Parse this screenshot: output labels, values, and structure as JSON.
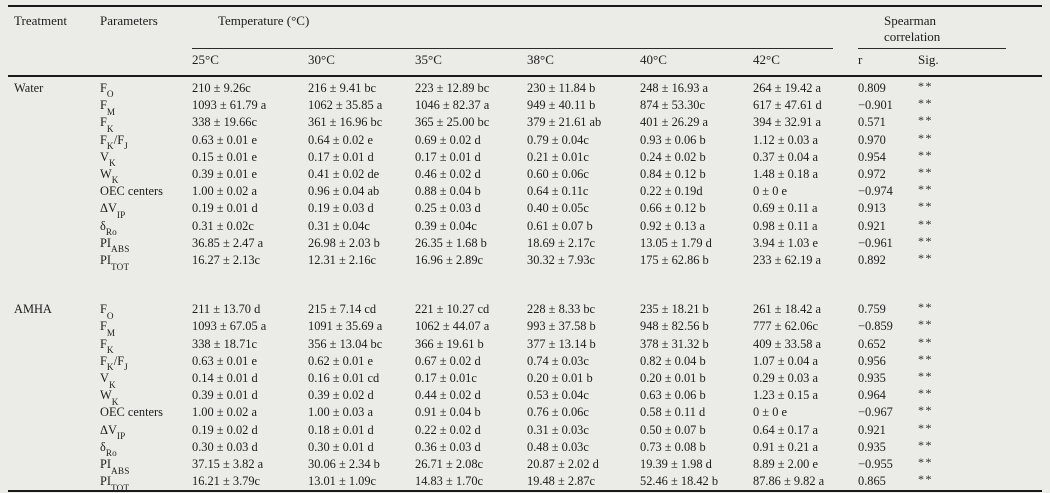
{
  "header": {
    "treatment": "Treatment",
    "parameters": "Parameters",
    "temperature_group": "Temperature (°C)",
    "spearman_group": "Spearman correlation",
    "temps": [
      "25°C",
      "30°C",
      "35°C",
      "38°C",
      "40°C",
      "42°C"
    ],
    "r_label": "r",
    "sig_label": "Sig."
  },
  "sections": [
    {
      "treatment": "Water",
      "rows": [
        {
          "param": "F_{O}",
          "values": [
            "210 ± 9.26c",
            "216 ± 9.41 bc",
            "223 ± 12.89 bc",
            "230 ± 11.84 b",
            "248 ± 16.93 a",
            "264 ± 19.42 a"
          ],
          "r": "0.809",
          "sig": "**"
        },
        {
          "param": "F_{M}",
          "values": [
            "1093 ± 61.79 a",
            "1062 ± 35.85 a",
            "1046 ± 82.37 a",
            "949 ± 40.11 b",
            "874 ± 53.30c",
            "617 ± 47.61 d"
          ],
          "r": "−0.901",
          "sig": "**"
        },
        {
          "param": "F_{K}",
          "values": [
            "338 ± 19.66c",
            "361 ± 16.96 bc",
            "365 ± 25.00 bc",
            "379 ± 21.61 ab",
            "401 ± 26.29 a",
            "394 ± 32.91 a"
          ],
          "r": "0.571",
          "sig": "**"
        },
        {
          "param": "F_{K}/F_{J}",
          "values": [
            "0.63 ± 0.01 e",
            "0.64 ± 0.02 e",
            "0.69 ± 0.02 d",
            "0.79 ± 0.04c",
            "0.93 ± 0.06 b",
            "1.12 ± 0.03 a"
          ],
          "r": "0.970",
          "sig": "**"
        },
        {
          "param": "V_{K}",
          "values": [
            "0.15 ± 0.01 e",
            "0.17 ± 0.01 d",
            "0.17 ± 0.01 d",
            "0.21 ± 0.01c",
            "0.24 ± 0.02 b",
            "0.37 ± 0.04 a"
          ],
          "r": "0.954",
          "sig": "**"
        },
        {
          "param": "W_{K}",
          "values": [
            "0.39 ± 0.01 e",
            "0.41 ± 0.02 de",
            "0.46 ± 0.02 d",
            "0.60 ± 0.06c",
            "0.84 ± 0.12 b",
            "1.48 ± 0.18 a"
          ],
          "r": "0.972",
          "sig": "**"
        },
        {
          "param": "OEC centers",
          "values": [
            "1.00 ± 0.02 a",
            "0.96 ± 0.04 ab",
            "0.88 ± 0.04 b",
            "0.64 ± 0.11c",
            "0.22 ± 0.19d",
            "0 ± 0 e"
          ],
          "r": "−0.974",
          "sig": "**"
        },
        {
          "param": "ΔV_{IP}",
          "values": [
            "0.19 ± 0.01 d",
            "0.19 ± 0.03 d",
            "0.25 ± 0.03 d",
            "0.40 ± 0.05c",
            "0.66 ± 0.12 b",
            "0.69 ± 0.11 a"
          ],
          "r": "0.913",
          "sig": "**"
        },
        {
          "param": "δ_{Ro}",
          "values": [
            "0.31 ± 0.02c",
            "0.31 ± 0.04c",
            "0.39 ± 0.04c",
            "0.61 ± 0.07 b",
            "0.92 ± 0.13 a",
            "0.98 ± 0.11 a"
          ],
          "r": "0.921",
          "sig": "**"
        },
        {
          "param": "PI_{ABS}",
          "values": [
            "36.85 ± 2.47 a",
            "26.98 ± 2.03 b",
            "26.35 ± 1.68 b",
            "18.69 ± 2.17c",
            "13.05 ± 1.79 d",
            "3.94 ± 1.03 e"
          ],
          "r": "−0.961",
          "sig": "**"
        },
        {
          "param": "PI_{TOT}",
          "values": [
            "16.27 ± 2.13c",
            "12.31 ± 2.16c",
            "16.96 ± 2.89c",
            "30.32 ± 7.93c",
            "175 ± 62.86 b",
            "233 ± 62.19 a"
          ],
          "r": "0.892",
          "sig": "**"
        }
      ]
    },
    {
      "treatment": "AMHA",
      "rows": [
        {
          "param": "F_{O}",
          "values": [
            "211 ± 13.70 d",
            "215 ± 7.14 cd",
            "221 ± 10.27 cd",
            "228 ± 8.33 bc",
            "235 ± 18.21 b",
            "261 ± 18.42 a"
          ],
          "r": "0.759",
          "sig": "**"
        },
        {
          "param": "F_{M}",
          "values": [
            "1093 ± 67.05 a",
            "1091 ± 35.69 a",
            "1062 ± 44.07 a",
            "993 ± 37.58 b",
            "948 ± 82.56 b",
            "777 ± 62.06c"
          ],
          "r": "−0.859",
          "sig": "**"
        },
        {
          "param": "F_{K}",
          "values": [
            "338 ± 18.71c",
            "356 ± 13.04 bc",
            "366 ± 19.61 b",
            "377 ± 13.14 b",
            "378 ± 31.32 b",
            "409 ± 33.58 a"
          ],
          "r": "0.652",
          "sig": "**"
        },
        {
          "param": "F_{K}/F_{J}",
          "values": [
            "0.63 ± 0.01 e",
            "0.62 ± 0.01 e",
            "0.67 ± 0.02 d",
            "0.74 ± 0.03c",
            "0.82 ± 0.04 b",
            "1.07 ± 0.04 a"
          ],
          "r": "0.956",
          "sig": "**"
        },
        {
          "param": "V_{K}",
          "values": [
            "0.14 ± 0.01 d",
            "0.16 ± 0.01 cd",
            "0.17 ± 0.01c",
            "0.20 ± 0.01 b",
            "0.20 ± 0.01 b",
            "0.29 ± 0.03 a"
          ],
          "r": "0.935",
          "sig": "**"
        },
        {
          "param": "W_{K}",
          "values": [
            "0.39 ± 0.01 d",
            "0.39 ± 0.02 d",
            "0.44 ± 0.02 d",
            "0.53 ± 0.04c",
            "0.63 ± 0.06 b",
            "1.23 ± 0.15 a"
          ],
          "r": "0.964",
          "sig": "**"
        },
        {
          "param": "OEC centers",
          "values": [
            "1.00 ± 0.02 a",
            "1.00 ± 0.03 a",
            "0.91 ± 0.04 b",
            "0.76 ± 0.06c",
            "0.58 ± 0.11 d",
            "0 ± 0 e"
          ],
          "r": "−0.967",
          "sig": "**"
        },
        {
          "param": "ΔV_{IP}",
          "values": [
            "0.19 ± 0.02 d",
            "0.18 ± 0.01 d",
            "0.22 ± 0.02 d",
            "0.31 ± 0.03c",
            "0.50 ± 0.07 b",
            "0.64 ± 0.17 a"
          ],
          "r": "0.921",
          "sig": "**"
        },
        {
          "param": "δ_{Ro}",
          "values": [
            "0.30 ± 0.03 d",
            "0.30 ± 0.01 d",
            "0.36 ± 0.03 d",
            "0.48 ± 0.03c",
            "0.73 ± 0.08 b",
            "0.91 ± 0.21 a"
          ],
          "r": "0.935",
          "sig": "**"
        },
        {
          "param": "PI_{ABS}",
          "values": [
            "37.15 ± 3.82 a",
            "30.06 ± 2.34 b",
            "26.71 ± 2.08c",
            "20.87 ± 2.02 d",
            "19.39 ± 1.98 d",
            "8.89 ± 2.00 e"
          ],
          "r": "−0.955",
          "sig": "**"
        },
        {
          "param": "PI_{TOT}",
          "values": [
            "16.21 ± 3.79c",
            "13.01 ± 1.09c",
            "14.83 ± 1.70c",
            "19.48 ± 2.87c",
            "52.46 ± 18.42 b",
            "87.86 ± 9.82 a"
          ],
          "r": "0.865",
          "sig": "**"
        }
      ]
    }
  ],
  "colors": {
    "background": "#ebece7",
    "ink": "#1c1c1c",
    "rule": "#1a1a1a"
  }
}
